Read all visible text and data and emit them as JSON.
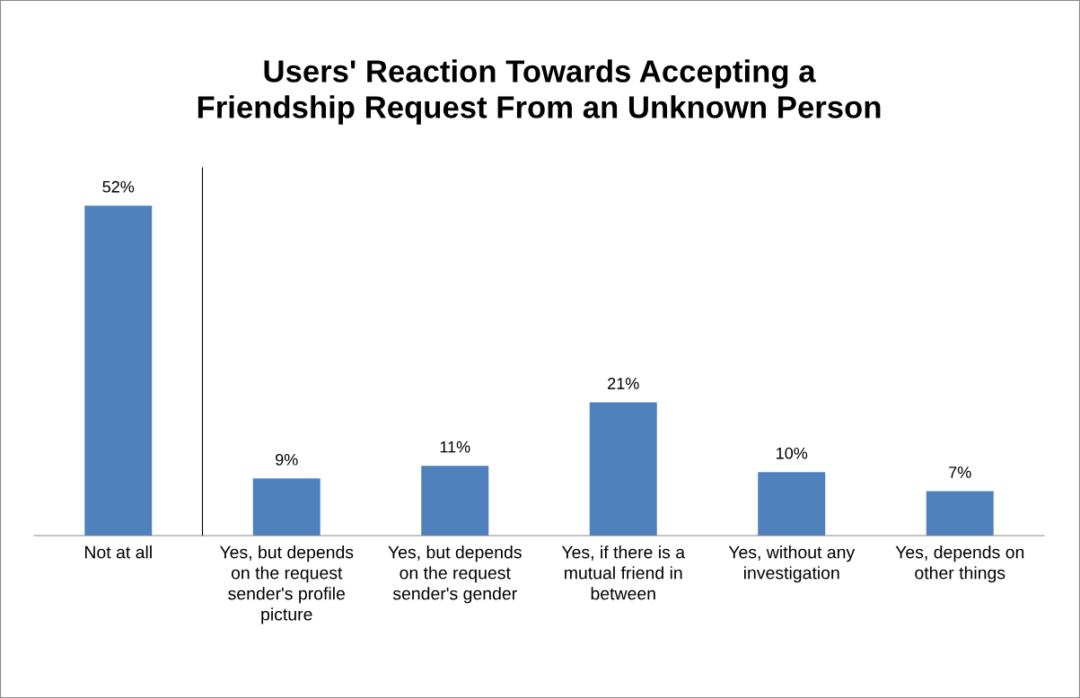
{
  "chart_data": {
    "type": "bar",
    "title": "Users' Reaction Towards Accepting a\nFriendship Request From an Unknown Person",
    "categories": [
      "Not at all",
      "Yes, but depends\non the request\nsender's profile\npicture",
      "Yes, but depends\non the request\nsender's gender",
      "Yes, if there is a\nmutual friend in\nbetween",
      "Yes, without any\ninvestigation",
      "Yes, depends on\nother things"
    ],
    "values": [
      52,
      9,
      11,
      21,
      10,
      7
    ],
    "value_labels": [
      "52%",
      "9%",
      "11%",
      "21%",
      "10%",
      "7%"
    ],
    "color": "#4f81bd",
    "grid": false,
    "legend": false,
    "tick_labels": "x"
  }
}
